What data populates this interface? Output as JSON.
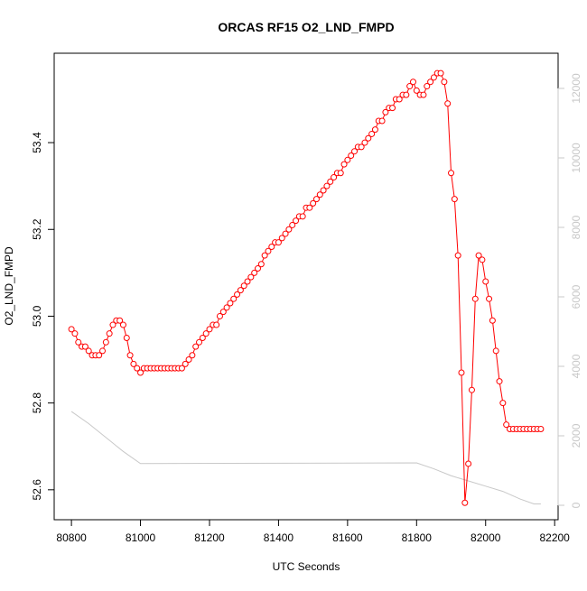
{
  "chart_data": {
    "type": "line",
    "title": "ORCAS RF15 O2_LND_FMPD",
    "x_label": "UTC Seconds",
    "y_label": "O2_LND_FMPD",
    "xlim": [
      80750,
      82210
    ],
    "ylim": [
      52.531,
      53.606
    ],
    "y2lim": [
      -416,
      13013
    ],
    "xticks": [
      80800,
      81000,
      81200,
      81400,
      81600,
      81800,
      82000,
      82200
    ],
    "yticks": [
      52.6,
      52.8,
      {
        "value": 53,
        "label": "53.0"
      },
      53.2,
      53.4
    ],
    "y2ticks": [
      0,
      2000,
      4000,
      6000,
      8000,
      10000,
      12000
    ],
    "series": [
      {
        "color": "#ff0000",
        "markers": true,
        "x": [
          80800,
          80810,
          80820,
          80830,
          80840,
          80850,
          80860,
          80870,
          80880,
          80890,
          80900,
          80910,
          80920,
          80930,
          80940,
          80950,
          80960,
          80970,
          80980,
          80990,
          81000,
          81010,
          81020,
          81030,
          81040,
          81050,
          81060,
          81070,
          81080,
          81090,
          81100,
          81110,
          81120,
          81130,
          81140,
          81150,
          81160,
          81170,
          81180,
          81190,
          81200,
          81210,
          81220,
          81230,
          81240,
          81250,
          81260,
          81270,
          81280,
          81290,
          81300,
          81310,
          81320,
          81330,
          81340,
          81350,
          81360,
          81370,
          81380,
          81390,
          81400,
          81410,
          81420,
          81430,
          81440,
          81450,
          81460,
          81470,
          81480,
          81490,
          81500,
          81510,
          81520,
          81530,
          81540,
          81550,
          81560,
          81570,
          81580,
          81590,
          81600,
          81610,
          81620,
          81630,
          81640,
          81650,
          81660,
          81670,
          81680,
          81690,
          81700,
          81710,
          81720,
          81730,
          81740,
          81750,
          81760,
          81770,
          81780,
          81790,
          81800,
          81810,
          81820,
          81830,
          81840,
          81850,
          81860,
          81870,
          81880,
          81890,
          81900,
          81910,
          81920,
          81930,
          81940,
          81950,
          81960,
          81970,
          81980,
          81990,
          82000,
          82010,
          82020,
          82030,
          82040,
          82050,
          82060,
          82070,
          82080,
          82090,
          82100,
          82110,
          82120,
          82130,
          82140,
          82150,
          82160
        ],
        "values": [
          52.97,
          52.96,
          52.94,
          52.93,
          52.93,
          52.92,
          52.91,
          52.91,
          52.91,
          52.92,
          52.94,
          52.96,
          52.98,
          52.99,
          52.99,
          52.98,
          52.95,
          52.91,
          52.89,
          52.88,
          52.87,
          52.88,
          52.88,
          52.88,
          52.88,
          52.88,
          52.88,
          52.88,
          52.88,
          52.88,
          52.88,
          52.88,
          52.88,
          52.89,
          52.9,
          52.91,
          52.93,
          52.94,
          52.95,
          52.96,
          52.97,
          52.98,
          52.98,
          53.0,
          53.01,
          53.02,
          53.03,
          53.04,
          53.05,
          53.06,
          53.07,
          53.08,
          53.09,
          53.1,
          53.11,
          53.12,
          53.14,
          53.15,
          53.16,
          53.17,
          53.17,
          53.18,
          53.19,
          53.2,
          53.21,
          53.22,
          53.23,
          53.23,
          53.25,
          53.25,
          53.26,
          53.27,
          53.28,
          53.29,
          53.3,
          53.31,
          53.32,
          53.33,
          53.33,
          53.35,
          53.36,
          53.37,
          53.38,
          53.39,
          53.39,
          53.4,
          53.41,
          53.42,
          53.43,
          53.45,
          53.45,
          53.47,
          53.48,
          53.48,
          53.5,
          53.5,
          53.51,
          53.51,
          53.53,
          53.54,
          53.52,
          53.51,
          53.51,
          53.53,
          53.54,
          53.55,
          53.56,
          53.56,
          53.54,
          53.49,
          53.33,
          53.27,
          53.14,
          52.87,
          52.57,
          52.66,
          52.83,
          53.04,
          53.14,
          53.13,
          53.08,
          53.04,
          52.99,
          52.92,
          52.85,
          52.8,
          52.75,
          52.74,
          52.74,
          52.74,
          52.74,
          52.74,
          52.74,
          52.74,
          52.74,
          52.74,
          52.74
        ]
      },
      {
        "color": "#c8c8c8",
        "axis": "y2",
        "markers": false,
        "x": [
          80800,
          80850,
          80900,
          80950,
          81000,
          81800,
          81850,
          81900,
          81950,
          82000,
          82050,
          82100,
          82140,
          82160
        ],
        "values": [
          2700,
          2350,
          1950,
          1550,
          1200,
          1220,
          1050,
          850,
          700,
          550,
          400,
          180,
          40,
          40
        ]
      }
    ]
  }
}
